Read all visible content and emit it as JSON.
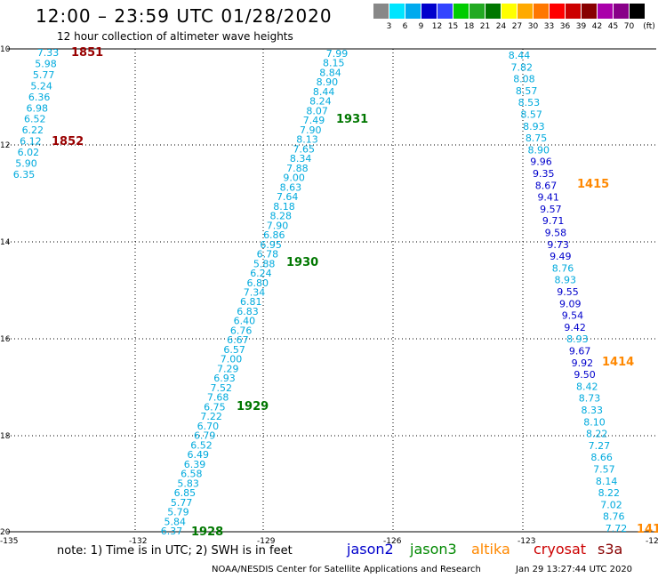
{
  "header": {
    "title": "12:00 – 23:59 UTC 01/28/2020",
    "subtitle": "12 hour collection of altimeter wave heights"
  },
  "color_scale": {
    "labels": [
      "3",
      "6",
      "9",
      "12",
      "15",
      "18",
      "21",
      "24",
      "27",
      "30",
      "33",
      "36",
      "39",
      "42",
      "45",
      "70"
    ],
    "unit": "(ft)",
    "colors": [
      "#888888",
      "#00e5ff",
      "#00aaee",
      "#0000cc",
      "#3344ff",
      "#00cc00",
      "#22aa22",
      "#007700",
      "#ffff00",
      "#ffaa00",
      "#ff7700",
      "#ff0000",
      "#cc0000",
      "#880000",
      "#aa00aa",
      "#880088",
      "#000000"
    ]
  },
  "axes": {
    "lat_labels": [
      "10",
      "12",
      "14",
      "16",
      "18",
      "20"
    ],
    "lon_labels": [
      "-135",
      "-132",
      "-129",
      "-126",
      "-123",
      "-12"
    ]
  },
  "tracks": [
    {
      "satellite": "cryosat",
      "color": "#00aadd",
      "values": [
        "7.33",
        "5.98",
        "5.77",
        "5.24",
        "6.36",
        "6.98",
        "6.52",
        "6.22",
        "6.12",
        "6.02",
        "5.90",
        "6.35"
      ],
      "time_labels": [
        {
          "text": "1851",
          "color": "#990000"
        },
        {
          "text": "1852",
          "color": "#990000"
        }
      ]
    },
    {
      "satellite": "jason3",
      "color": "#00aadd",
      "values": [
        "7.99",
        "8.15",
        "8.84",
        "8.90",
        "8.44",
        "8.24",
        "8.07",
        "7.49",
        "7.90",
        "8.13",
        "7.65",
        "8.34",
        "7.88",
        "9.00",
        "8.63",
        "7.64",
        "8.18",
        "8.28",
        "7.90",
        "6.86",
        "6.95",
        "6.78",
        "5.88",
        "6.24",
        "6.80",
        "7.34",
        "6.81",
        "6.83",
        "6.40",
        "6.76",
        "6.67",
        "6.57",
        "7.00",
        "7.29",
        "6.93",
        "7.52",
        "7.68",
        "6.75",
        "7.22",
        "6.70",
        "6.79",
        "6.52",
        "6.49",
        "6.39",
        "6.58",
        "5.83",
        "6.85",
        "5.77",
        "5.79",
        "5.84",
        "6.37"
      ],
      "time_labels": [
        {
          "text": "1931",
          "color": "#007700"
        },
        {
          "text": "1930",
          "color": "#007700"
        },
        {
          "text": "1929",
          "color": "#007700"
        },
        {
          "text": "1928",
          "color": "#007700"
        }
      ]
    },
    {
      "satellite": "altika",
      "values": [
        "8.44",
        "7.82",
        "8.08",
        "8.57",
        "8.53",
        "8.57",
        "8.93",
        "8.75",
        "8.90",
        "9.96",
        "9.35",
        "8.67",
        "9.41",
        "9.57",
        "9.71",
        "9.58",
        "9.73",
        "9.49",
        "8.76",
        "8.93",
        "9.55",
        "9.09",
        "9.54",
        "9.42",
        "8.93",
        "9.67",
        "9.92",
        "9.50",
        "8.42",
        "8.73",
        "8.33",
        "8.10",
        "8.22",
        "7.27",
        "8.66",
        "7.57",
        "8.14",
        "8.22",
        "7.02",
        "8.76",
        "7.72"
      ],
      "colors": [
        "#00aadd",
        "#00aadd",
        "#00aadd",
        "#00aadd",
        "#00aadd",
        "#00aadd",
        "#00aadd",
        "#00aadd",
        "#00aadd",
        "#0000cc",
        "#0000cc",
        "#0000cc",
        "#0000cc",
        "#0000cc",
        "#0000cc",
        "#0000cc",
        "#0000cc",
        "#0000cc",
        "#00aadd",
        "#00aadd",
        "#0000cc",
        "#0000cc",
        "#0000cc",
        "#0000cc",
        "#00aadd",
        "#0000cc",
        "#0000cc",
        "#0000cc",
        "#00aadd",
        "#00aadd",
        "#00aadd",
        "#00aadd",
        "#00aadd",
        "#00aadd",
        "#00aadd",
        "#00aadd",
        "#00aadd",
        "#00aadd",
        "#00aadd",
        "#00aadd",
        "#00aadd"
      ],
      "time_labels": [
        {
          "text": "1415",
          "color": "#ff8800"
        },
        {
          "text": "1414",
          "color": "#ff8800"
        },
        {
          "text": "141",
          "color": "#ff8800"
        }
      ]
    }
  ],
  "footer": {
    "note": "note: 1) Time is in UTC; 2) SWH is in feet",
    "satellites": [
      {
        "name": "jason2",
        "color": "#0000cc"
      },
      {
        "name": "jason3",
        "color": "#008800"
      },
      {
        "name": "altika",
        "color": "#ff8800"
      },
      {
        "name": "cryosat",
        "color": "#cc0000"
      },
      {
        "name": "s3a",
        "color": "#880000"
      }
    ],
    "credit": "NOAA/NESDIS Center for Satellite Applications and Research",
    "timestamp": "Jan 29 13:27:44 UTC 2020"
  }
}
